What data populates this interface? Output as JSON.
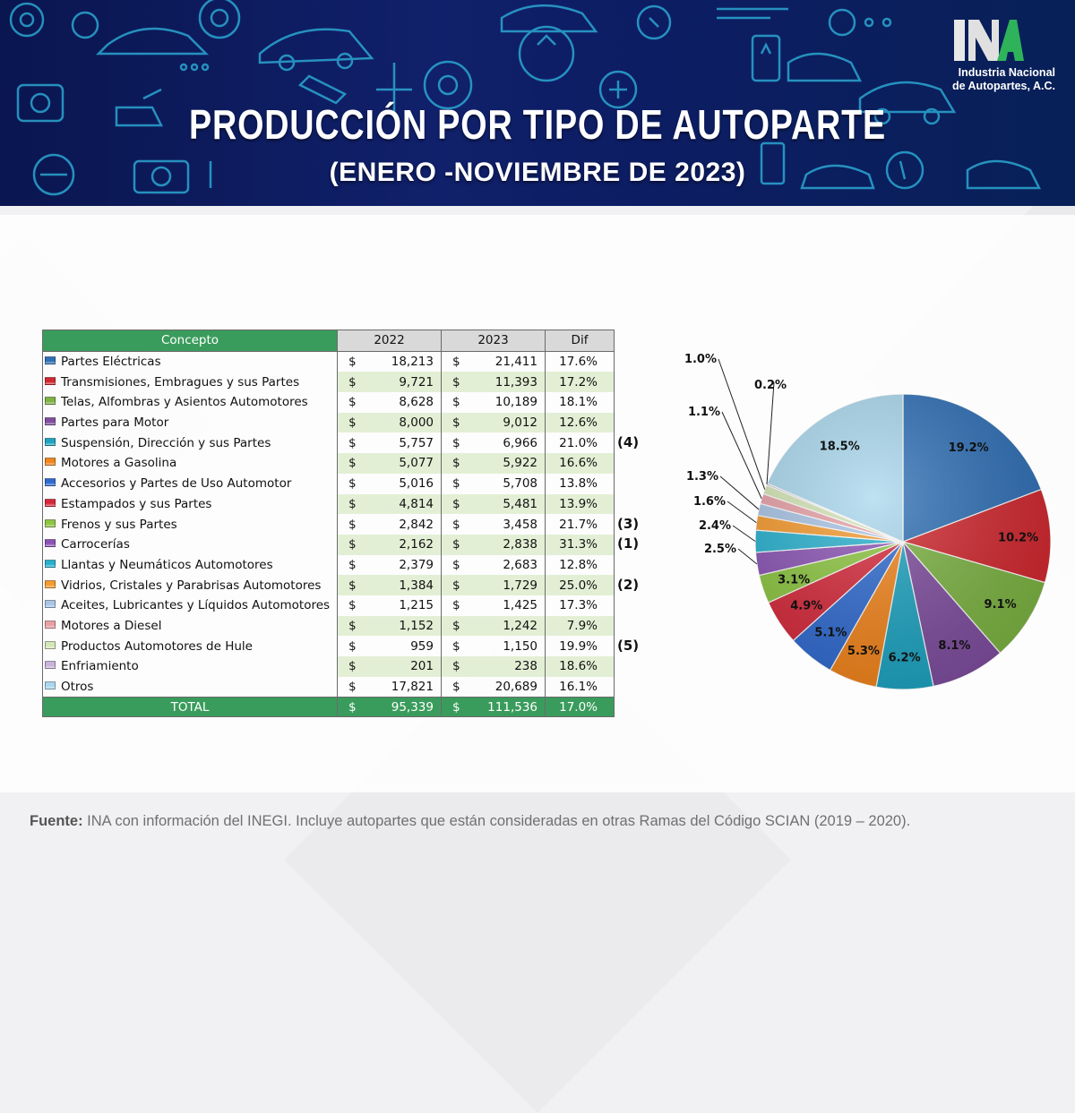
{
  "header": {
    "title": "PRODUCCIÓN POR TIPO DE AUTOPARTE",
    "subtitle": "(ENERO -NOVIEMBRE DE 2023)",
    "logo_line1": "Industria Nacional",
    "logo_line2": "de Autopartes, A.C."
  },
  "table": {
    "headers": {
      "concept": "Concepto",
      "y2022": "2022",
      "y2023": "2023",
      "dif": "Dif"
    },
    "currency": "$",
    "total_label": "TOTAL",
    "total_2022": "95,339",
    "total_2023": "111,536",
    "total_dif": "17.0%",
    "rows": [
      {
        "concepto": "Partes Eléctricas",
        "v2022": "18,213",
        "v2023": "21,411",
        "dif": "17.6%"
      },
      {
        "concepto": "Transmisiones, Embragues y sus Partes",
        "v2022": "9,721",
        "v2023": "11,393",
        "dif": "17.2%"
      },
      {
        "concepto": "Telas, Alfombras y Asientos Automotores",
        "v2022": "8,628",
        "v2023": "10,189",
        "dif": "18.1%"
      },
      {
        "concepto": "Partes para Motor",
        "v2022": "8,000",
        "v2023": "9,012",
        "dif": "12.6%"
      },
      {
        "concepto": "Suspensión, Dirección y sus Partes",
        "v2022": "5,757",
        "v2023": "6,966",
        "dif": "21.0%"
      },
      {
        "concepto": "Motores a Gasolina",
        "v2022": "5,077",
        "v2023": "5,922",
        "dif": "16.6%"
      },
      {
        "concepto": "Accesorios y Partes de Uso Automotor",
        "v2022": "5,016",
        "v2023": "5,708",
        "dif": "13.8%"
      },
      {
        "concepto": "Estampados y sus Partes",
        "v2022": "4,814",
        "v2023": "5,481",
        "dif": "13.9%"
      },
      {
        "concepto": "Frenos y sus Partes",
        "v2022": "2,842",
        "v2023": "3,458",
        "dif": "21.7%"
      },
      {
        "concepto": "Carrocerías",
        "v2022": "2,162",
        "v2023": "2,838",
        "dif": "31.3%"
      },
      {
        "concepto": "Llantas y Neumáticos Automotores",
        "v2022": "2,379",
        "v2023": "2,683",
        "dif": "12.8%"
      },
      {
        "concepto": "Vidrios, Cristales y Parabrisas Automotores",
        "v2022": "1,384",
        "v2023": "1,729",
        "dif": "25.0%"
      },
      {
        "concepto": "Aceites, Lubricantes y Líquidos Automotores",
        "v2022": "1,215",
        "v2023": "1,425",
        "dif": "17.3%"
      },
      {
        "concepto": "Motores a Diesel",
        "v2022": "1,152",
        "v2023": "1,242",
        "dif": "7.9%"
      },
      {
        "concepto": "Productos Automotores de Hule",
        "v2022": "959",
        "v2023": "1,150",
        "dif": "19.9%"
      },
      {
        "concepto": "Enfriamiento",
        "v2022": "201",
        "v2023": "238",
        "dif": "18.6%"
      },
      {
        "concepto": "Otros",
        "v2022": "17,821",
        "v2023": "20,689",
        "dif": "16.1%"
      }
    ],
    "rank_notes": [
      {
        "row": 4,
        "text": "(4)"
      },
      {
        "row": 8,
        "text": "(3)"
      },
      {
        "row": 9,
        "text": "(1)"
      },
      {
        "row": 11,
        "text": "(2)"
      },
      {
        "row": 14,
        "text": "(5)"
      }
    ]
  },
  "chart_data": {
    "type": "pie",
    "categories": [
      "Partes Eléctricas",
      "Transmisiones, Embragues y sus Partes",
      "Telas, Alfombras y Asientos Automotores",
      "Partes para Motor",
      "Suspensión, Dirección y sus Partes",
      "Motores a Gasolina",
      "Accesorios y Partes de Uso Automotor",
      "Estampados y sus Partes",
      "Frenos y sus Partes",
      "Carrocerías",
      "Llantas y Neumáticos Automotores",
      "Vidrios, Cristales y Parabrisas Automotores",
      "Aceites, Lubricantes y Líquidos Automotores",
      "Motores a Diesel",
      "Productos Automotores de Hule",
      "Enfriamiento",
      "Otros"
    ],
    "values": [
      19.2,
      10.2,
      9.1,
      8.1,
      6.2,
      5.3,
      5.1,
      4.9,
      3.1,
      2.5,
      2.4,
      1.6,
      1.3,
      1.1,
      1.0,
      0.2,
      18.5
    ],
    "labels": [
      "19.2%",
      "10.2%",
      "9.1%",
      "8.1%",
      "6.2%",
      "5.3%",
      "5.1%",
      "4.9%",
      "3.1%",
      "2.5%",
      "2.4%",
      "1.6%",
      "1.3%",
      "1.1%",
      "1.0%",
      "0.2%",
      "18.5%"
    ],
    "colors": [
      "#2e6fb6",
      "#d1272e",
      "#7cb342",
      "#7e4d9e",
      "#1da3c1",
      "#f2841b",
      "#2f6ad0",
      "#d6283a",
      "#8cc63f",
      "#8b53b5",
      "#27b1cf",
      "#f79a2c",
      "#a8c4e6",
      "#e8a0a6",
      "#d4e6b5",
      "#c9b3dc",
      "#a9d8ee"
    ]
  },
  "footer": {
    "source_label": "Fuente:",
    "source_text": " INA con información del INEGI. Incluye autopartes que están consideradas en otras Ramas del Código SCIAN (2019 – 2020)."
  }
}
